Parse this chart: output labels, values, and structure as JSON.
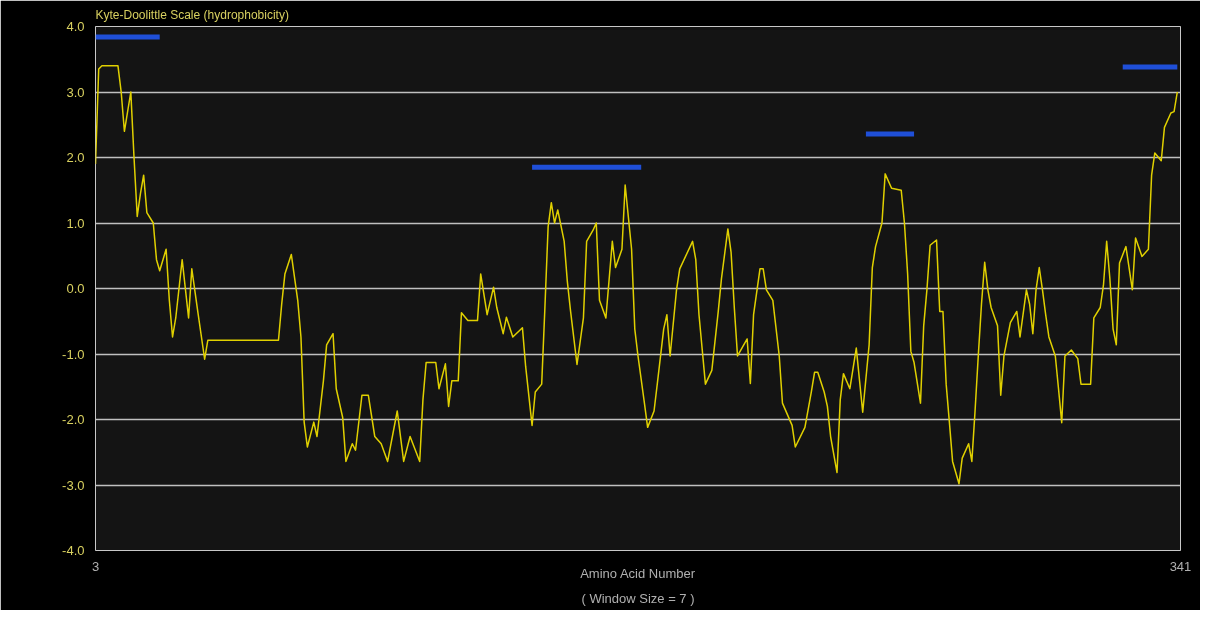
{
  "chart_data": {
    "type": "line",
    "title": "Kyte-Doolittle Scale (hydrophobicity)",
    "xlabel": "Amino Acid Number",
    "annotations": [
      "( Window Size = 7 )"
    ],
    "xlim": [
      3,
      341
    ],
    "xticks": [
      3,
      341
    ],
    "ylim": [
      -4,
      4
    ],
    "yticks": [
      {
        "value": -4,
        "label": "-4.0"
      },
      {
        "value": -3,
        "label": "-3.0"
      },
      {
        "value": -2,
        "label": "-2.0"
      },
      {
        "value": -1,
        "label": "-1.0"
      },
      {
        "value": 0,
        "label": "0.0"
      },
      {
        "value": 1,
        "label": "1.0"
      },
      {
        "value": 2,
        "label": "2.0"
      },
      {
        "value": 3,
        "label": "3.0"
      },
      {
        "value": 4,
        "label": "4.0"
      }
    ],
    "grid": "y",
    "marker": "none",
    "line_style": "solid",
    "series": [
      {
        "color": "#e0d000",
        "x": [
          3,
          4,
          5,
          10,
          11,
          12,
          14,
          15,
          16,
          17,
          18,
          19,
          21,
          22,
          23,
          25,
          26,
          27,
          28,
          30,
          32,
          33,
          35,
          37,
          38,
          60,
          61,
          62,
          64,
          66,
          67,
          68,
          69,
          71,
          72,
          74,
          75,
          77,
          78,
          80,
          81,
          83,
          84,
          86,
          88,
          90,
          92,
          94,
          97,
          99,
          101,
          104,
          105,
          106,
          109,
          110,
          112,
          113,
          114,
          116,
          117,
          119,
          122,
          123,
          125,
          127,
          128,
          130,
          131,
          133,
          136,
          137,
          139,
          140,
          142,
          143,
          144,
          145,
          146,
          147,
          149,
          150,
          151,
          153,
          155,
          156,
          158,
          159,
          160,
          162,
          164,
          165,
          167,
          168,
          170,
          171,
          172,
          174,
          175,
          177,
          178,
          180,
          181,
          182,
          184,
          185,
          189,
          190,
          191,
          193,
          195,
          197,
          198,
          200,
          201,
          202,
          203,
          206,
          207,
          208,
          210,
          211,
          212,
          214,
          216,
          217,
          220,
          221,
          224,
          226,
          227,
          228,
          230,
          231,
          232,
          234,
          235,
          236,
          238,
          240,
          242,
          244,
          245,
          246,
          248,
          249,
          251,
          254,
          255,
          256,
          257,
          258,
          260,
          261,
          262,
          263,
          265,
          266,
          267,
          268,
          269,
          270,
          272,
          273,
          275,
          276,
          277,
          278,
          279,
          280,
          281,
          282,
          284,
          285,
          286,
          288,
          290,
          291,
          293,
          294,
          295,
          296,
          297,
          298,
          299,
          300,
          302,
          303,
          304,
          305,
          307,
          309,
          310,
          313,
          314,
          316,
          317,
          318,
          319,
          320,
          321,
          322,
          324,
          326,
          327,
          329,
          331,
          332,
          333,
          335,
          336,
          338,
          339,
          340
        ],
        "values": [
          1.9,
          3.35,
          3.4,
          3.4,
          3.0,
          2.4,
          3.0,
          2.0,
          1.1,
          1.45,
          1.73,
          1.16,
          1.0,
          0.44,
          0.27,
          0.6,
          -0.18,
          -0.74,
          -0.45,
          0.44,
          -0.45,
          0.3,
          -0.4,
          -1.08,
          -0.79,
          -0.79,
          -0.24,
          0.22,
          0.52,
          -0.18,
          -0.74,
          -2.04,
          -2.42,
          -2.04,
          -2.26,
          -1.41,
          -0.86,
          -0.69,
          -1.53,
          -1.97,
          -2.64,
          -2.37,
          -2.47,
          -1.63,
          -1.63,
          -2.26,
          -2.37,
          -2.64,
          -1.87,
          -2.64,
          -2.26,
          -2.64,
          -1.7,
          -1.13,
          -1.13,
          -1.53,
          -1.15,
          -1.8,
          -1.41,
          -1.41,
          -0.37,
          -0.49,
          -0.49,
          0.22,
          -0.4,
          0.02,
          -0.29,
          -0.69,
          -0.44,
          -0.74,
          -0.6,
          -1.19,
          -2.09,
          -1.58,
          -1.46,
          -0.29,
          0.94,
          1.31,
          1.0,
          1.2,
          0.72,
          0.1,
          -0.35,
          -1.16,
          -0.45,
          0.72,
          0.89,
          1.0,
          -0.18,
          -0.45,
          0.72,
          0.32,
          0.6,
          1.58,
          0.6,
          -0.62,
          -1.03,
          -1.75,
          -2.12,
          -1.87,
          -1.46,
          -0.62,
          -0.4,
          -1.03,
          -0.02,
          0.3,
          0.72,
          0.44,
          -0.4,
          -1.46,
          -1.25,
          -0.35,
          0.15,
          0.91,
          0.55,
          -0.29,
          -1.03,
          -0.77,
          -1.45,
          -0.4,
          0.3,
          0.3,
          -0.02,
          -0.18,
          -1.03,
          -1.75,
          -2.09,
          -2.42,
          -2.12,
          -1.58,
          -1.28,
          -1.28,
          -1.58,
          -1.8,
          -2.26,
          -2.81,
          -1.7,
          -1.3,
          -1.53,
          -0.91,
          -1.89,
          -0.86,
          0.32,
          0.64,
          1.0,
          1.75,
          1.53,
          1.5,
          1.0,
          0.22,
          -0.96,
          -1.13,
          -1.75,
          -0.57,
          -0.02,
          0.66,
          0.74,
          -0.35,
          -0.35,
          -1.46,
          -2.04,
          -2.64,
          -2.98,
          -2.59,
          -2.37,
          -2.64,
          -1.87,
          -1.03,
          -0.24,
          0.4,
          -0.02,
          -0.29,
          -0.57,
          -1.63,
          -1.03,
          -0.52,
          -0.35,
          -0.74,
          -0.02,
          -0.24,
          -0.69,
          -0.02,
          0.32,
          -0.02,
          -0.4,
          -0.74,
          -1.03,
          -1.53,
          -2.05,
          -1.03,
          -0.94,
          -1.07,
          -1.46,
          -1.46,
          -0.45,
          -0.29,
          0.05,
          0.72,
          0.15,
          -0.62,
          -0.86,
          0.39,
          0.64,
          -0.02,
          0.77,
          0.49,
          0.6,
          1.73,
          2.07,
          1.95,
          2.46,
          2.68,
          2.7,
          3.0
        ]
      },
      {
        "color": "#1f4fd8",
        "x": [
          3,
          23
        ],
        "values": [
          3.84,
          3.84
        ]
      },
      {
        "color": "#1f4fd8",
        "x": [
          139,
          173
        ],
        "values": [
          1.85,
          1.85
        ]
      },
      {
        "color": "#1f4fd8",
        "x": [
          243,
          258
        ],
        "values": [
          2.36,
          2.36
        ]
      },
      {
        "color": "#1f4fd8",
        "x": [
          323,
          340
        ],
        "values": [
          3.38,
          3.38
        ]
      }
    ]
  }
}
